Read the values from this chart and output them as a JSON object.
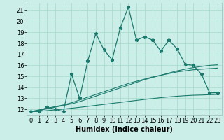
{
  "title": "",
  "xlabel": "Humidex (Indice chaleur)",
  "background_color": "#cceee8",
  "grid_color": "#aaddcc",
  "line_color": "#1a7a6e",
  "x_main": [
    0,
    1,
    2,
    3,
    4,
    5,
    6,
    7,
    8,
    9,
    10,
    11,
    12,
    13,
    14,
    15,
    16,
    17,
    18,
    19,
    20,
    21,
    22,
    23
  ],
  "y_main": [
    11.8,
    11.8,
    12.2,
    12.0,
    11.8,
    15.2,
    13.0,
    16.4,
    18.9,
    17.4,
    16.5,
    19.4,
    21.3,
    18.3,
    18.6,
    18.3,
    17.3,
    18.3,
    17.5,
    16.1,
    16.0,
    15.2,
    13.5,
    13.5
  ],
  "y_line1": [
    11.8,
    11.9,
    12.05,
    12.2,
    12.35,
    12.5,
    12.7,
    12.95,
    13.2,
    13.45,
    13.7,
    13.95,
    14.2,
    14.45,
    14.7,
    14.9,
    15.1,
    15.3,
    15.5,
    15.65,
    15.8,
    15.9,
    16.0,
    16.05
  ],
  "y_line2": [
    11.8,
    11.95,
    12.1,
    12.25,
    12.4,
    12.6,
    12.85,
    13.1,
    13.35,
    13.6,
    13.85,
    14.1,
    14.35,
    14.55,
    14.75,
    14.95,
    15.1,
    15.25,
    15.4,
    15.5,
    15.6,
    15.65,
    15.7,
    15.75
  ],
  "y_line3": [
    11.8,
    11.82,
    11.88,
    11.95,
    12.02,
    12.1,
    12.18,
    12.27,
    12.36,
    12.45,
    12.54,
    12.63,
    12.72,
    12.81,
    12.9,
    12.98,
    13.06,
    13.13,
    13.19,
    13.24,
    13.28,
    13.3,
    13.33,
    13.35
  ],
  "xlim": [
    -0.5,
    23.5
  ],
  "ylim": [
    11.5,
    21.7
  ],
  "yticks": [
    12,
    13,
    14,
    15,
    16,
    17,
    18,
    19,
    20,
    21
  ],
  "xticks": [
    0,
    1,
    2,
    3,
    4,
    5,
    6,
    7,
    8,
    9,
    10,
    11,
    12,
    13,
    14,
    15,
    16,
    17,
    18,
    19,
    20,
    21,
    22,
    23
  ],
  "fontsize_axis": 6,
  "fontsize_xlabel": 7
}
